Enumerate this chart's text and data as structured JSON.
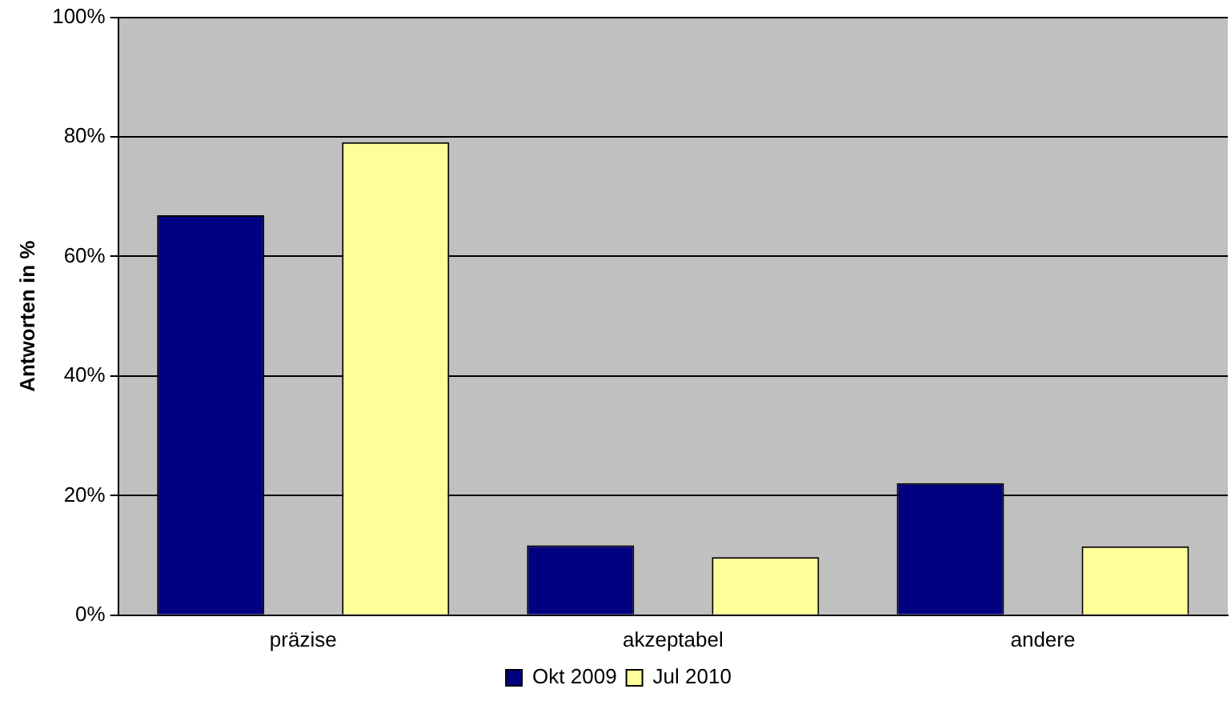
{
  "chart_data": {
    "type": "bar",
    "ylabel": "Antworten in %",
    "categories": [
      "präzise",
      "akzeptabel",
      "andere"
    ],
    "series": [
      {
        "name": "Okt 2009",
        "color": "#000080",
        "values": [
          66.9,
          11.7,
          22.1
        ]
      },
      {
        "name": "Jul 2010",
        "color": "#ffff99",
        "values": [
          79.1,
          9.7,
          11.5
        ]
      }
    ],
    "ylim": [
      0,
      100
    ],
    "yticks": [
      {
        "value": 0,
        "label": "0%"
      },
      {
        "value": 20,
        "label": "20%"
      },
      {
        "value": 40,
        "label": "40%"
      },
      {
        "value": 60,
        "label": "60%"
      },
      {
        "value": 80,
        "label": "80%"
      },
      {
        "value": 100,
        "label": "100%"
      }
    ],
    "grid": "y",
    "legend": "bottom"
  }
}
